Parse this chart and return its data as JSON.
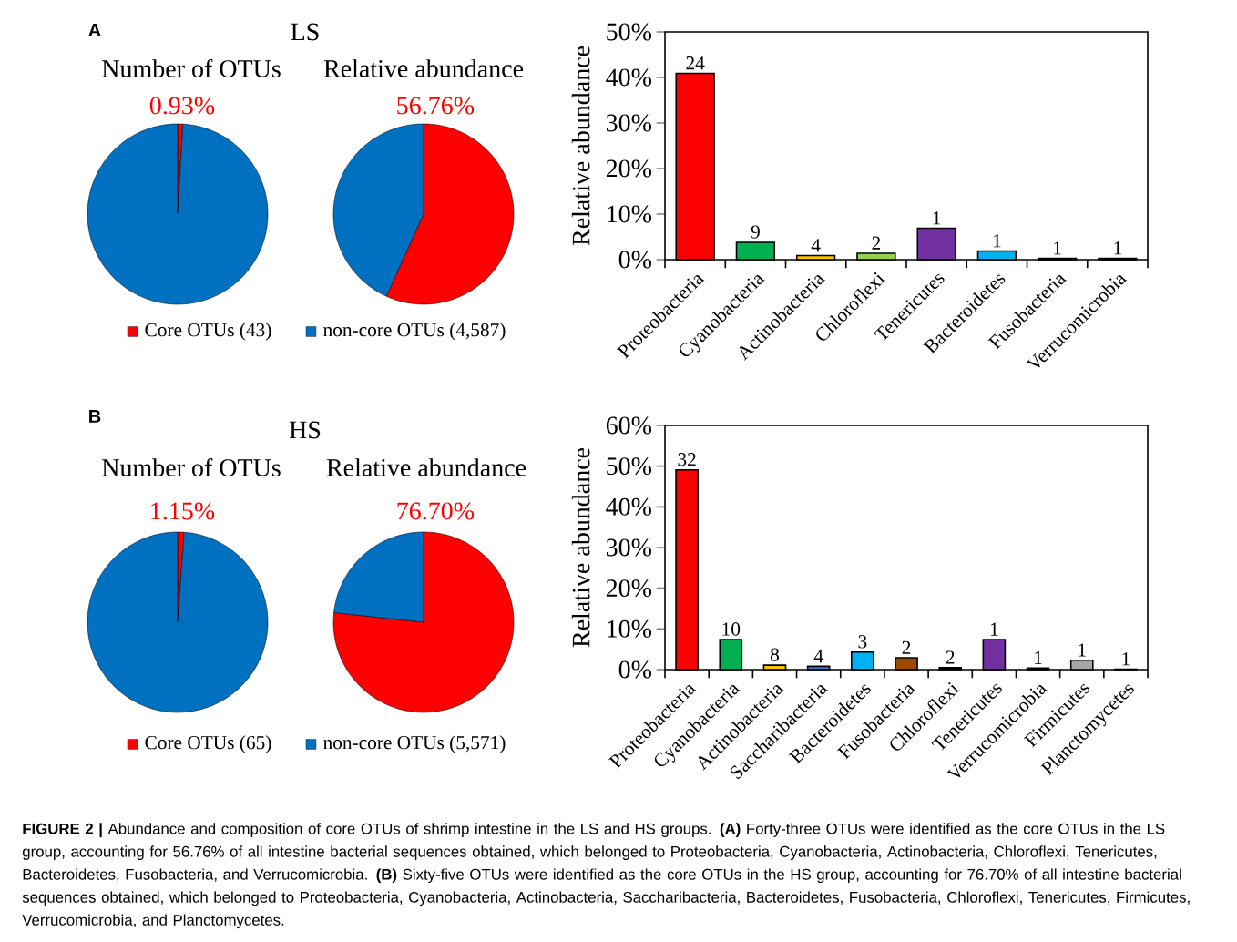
{
  "chart_data": [
    {
      "type": "pie",
      "title": "Number of OTUs",
      "annotations": [
        "A",
        "LS"
      ],
      "categories": [
        "Core OTUs (43)",
        "non-core OTUs (4,587)"
      ],
      "values": [
        0.93,
        99.07
      ],
      "colors": [
        "#ff0000",
        "#0070c0"
      ],
      "value_labels": [
        "0.93%",
        null
      ],
      "legend": "bottom"
    },
    {
      "type": "pie",
      "title": "Relative abundance",
      "categories": [
        null,
        null
      ],
      "values": [
        56.76,
        43.24
      ],
      "colors": [
        "#ff0000",
        "#0070c0"
      ],
      "value_labels": [
        "56.76%",
        null
      ]
    },
    {
      "type": "bar",
      "ylabel": "Relative abundance",
      "categories": [
        "Proteobacteria",
        "Cyanobacteria",
        "Actinobacteria",
        "Chloroflexi",
        "Tenericutes",
        "Bacteroidetes",
        "Fusobacteria",
        "Verrucomicrobia"
      ],
      "values": [
        40.9,
        3.8,
        0.9,
        1.4,
        6.9,
        1.9,
        0.3,
        0.3
      ],
      "colors": [
        "#ff0000",
        "#00b050",
        "#ffc000",
        "#92d050",
        "#7030a0",
        "#00b0f0",
        "#000000",
        "#000000"
      ],
      "annotations": [
        {
          "text": "24",
          "x": "Proteobacteria",
          "y": 40.9
        },
        {
          "text": "9",
          "x": "Cyanobacteria",
          "y": 3.8
        },
        {
          "text": "4",
          "x": "Actinobacteria",
          "y": 0.9
        },
        {
          "text": "2",
          "x": "Chloroflexi",
          "y": 1.4
        },
        {
          "text": "1",
          "x": "Tenericutes",
          "y": 6.9
        },
        {
          "text": "1",
          "x": "Bacteroidetes",
          "y": 1.9
        },
        {
          "text": "1",
          "x": "Fusobacteria",
          "y": 0.3
        },
        {
          "text": "1",
          "x": "Verrucomicrobia",
          "y": 0.3
        }
      ],
      "ylim": [
        0,
        50
      ],
      "yticks": [
        {
          "value": 0,
          "label": "0%"
        },
        {
          "value": 10,
          "label": "10%"
        },
        {
          "value": 20,
          "label": "20%"
        },
        {
          "value": 30,
          "label": "30%"
        },
        {
          "value": 40,
          "label": "40%"
        },
        {
          "value": 50,
          "label": "50%"
        }
      ]
    },
    {
      "type": "pie",
      "title": "Number of OTUs",
      "annotations": [
        "B",
        "HS"
      ],
      "categories": [
        "Core OTUs (65)",
        "non-core OTUs (5,571)"
      ],
      "values": [
        1.15,
        98.85
      ],
      "colors": [
        "#ff0000",
        "#0070c0"
      ],
      "value_labels": [
        "1.15%",
        null
      ],
      "legend": "bottom"
    },
    {
      "type": "pie",
      "title": "Relative abundance",
      "categories": [
        null,
        null
      ],
      "values": [
        76.7,
        23.3
      ],
      "colors": [
        "#ff0000",
        "#0070c0"
      ],
      "value_labels": [
        "76.70%",
        null
      ]
    },
    {
      "type": "bar",
      "ylabel": "Relative abundance",
      "categories": [
        "Proteobacteria",
        "Cyanobacteria",
        "Actinobacteria",
        "Saccharibacteria",
        "Bacteroidetes",
        "Fusobacteria",
        "Chloroflexi",
        "Tenericutes",
        "Verrucomicrobia",
        "Firmicutes",
        "Planctomycetes"
      ],
      "values": [
        49.1,
        7.4,
        1.1,
        0.8,
        4.3,
        2.9,
        0.5,
        7.4,
        0.4,
        2.3,
        0.1
      ],
      "colors": [
        "#ff0000",
        "#00b050",
        "#ffc000",
        "#4472c4",
        "#00b0f0",
        "#9c4a00",
        "#000000",
        "#7030a0",
        "#000000",
        "#a6a6a6",
        "#000000"
      ],
      "ylim": [
        0,
        60
      ],
      "yticks": [
        {
          "value": 0,
          "label": "0%"
        },
        {
          "value": 10,
          "label": "10%"
        },
        {
          "value": 20,
          "label": "20%"
        },
        {
          "value": 30,
          "label": "30%"
        },
        {
          "value": 40,
          "label": "40%"
        },
        {
          "value": 50,
          "label": "50%"
        },
        {
          "value": 60,
          "label": "60%"
        }
      ],
      "annotations": [
        {
          "text": "32",
          "x": "Proteobacteria",
          "y": 49.1
        },
        {
          "text": "10",
          "x": "Cyanobacteria",
          "y": 7.4
        },
        {
          "text": "8",
          "x": "Actinobacteria",
          "y": 1.1
        },
        {
          "text": "4",
          "x": "Saccharibacteria",
          "y": 0.8
        },
        {
          "text": "3",
          "x": "Bacteroidetes",
          "y": 4.3
        },
        {
          "text": "2",
          "x": "Fusobacteria",
          "y": 2.9
        },
        {
          "text": "2",
          "x": "Chloroflexi",
          "y": 0.5
        },
        {
          "text": "1",
          "x": "Tenericutes",
          "y": 7.4
        },
        {
          "text": "1",
          "x": "Verrucomicrobia",
          "y": 0.4
        },
        {
          "text": "1",
          "x": "Firmicutes",
          "y": 2.3
        },
        {
          "text": "1",
          "x": "Planctomycetes",
          "y": 0.1
        },
        "**FIGURE 2 |** Abundance and composition of core OTUs of shrimp intestine in the LS and HS groups. **(A)** Forty-three OTUs were identified as the core OTUs in the LS group, accounting for 56.76% of all intestine bacterial sequences obtained, which belonged to Proteobacteria, Cyanobacteria, Actinobacteria, Chloroflexi, Tenericutes, Bacteroidetes, Fusobacteria, and Verrucomicrobia. **(B)** Sixty-five OTUs were identified as the core OTUs in the HS group, accounting for 76.70% of all intestine bacterial sequences obtained, which belonged to Proteobacteria, Cyanobacteria, Actinobacteria, Saccharibacteria, Bacteroidetes, Fusobacteria, Chloroflexi, Tenericutes, Firmicutes, Verrucomicrobia, and Planctomycetes."
      ]
    }
  ]
}
